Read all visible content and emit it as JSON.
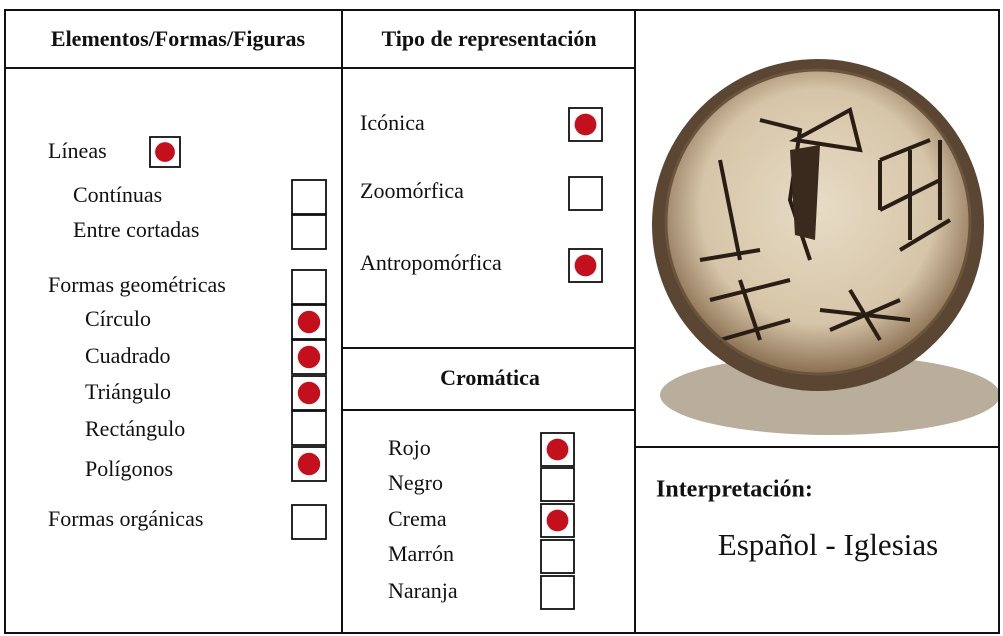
{
  "elements": {
    "title": "Elementos/Formas/Figuras",
    "items": [
      {
        "label": "Líneas",
        "checked": true
      },
      {
        "label": "Contínuas",
        "checked": false
      },
      {
        "label": "Entre cortadas",
        "checked": false
      },
      {
        "label": "Formas geométricas",
        "checked": false
      },
      {
        "label": "Círculo",
        "checked": true
      },
      {
        "label": "Cuadrado",
        "checked": true
      },
      {
        "label": "Triángulo",
        "checked": true
      },
      {
        "label": "Rectángulo",
        "checked": false
      },
      {
        "label": "Polígonos",
        "checked": true
      },
      {
        "label": "Formas orgánicas",
        "checked": false
      }
    ]
  },
  "representation": {
    "title": "Tipo de representación",
    "items": [
      {
        "label": "Icónica",
        "checked": true
      },
      {
        "label": "Zoomórfica",
        "checked": false
      },
      {
        "label": "Antropomórfica",
        "checked": true
      }
    ]
  },
  "chromatic": {
    "title": "Cromática",
    "items": [
      {
        "label": "Rojo",
        "checked": true
      },
      {
        "label": "Negro",
        "checked": false
      },
      {
        "label": "Crema",
        "checked": true
      },
      {
        "label": "Marrón",
        "checked": false
      },
      {
        "label": "Naranja",
        "checked": false
      }
    ]
  },
  "interpretation": {
    "title": "Interpretación:",
    "value": "Español - Iglesias"
  }
}
